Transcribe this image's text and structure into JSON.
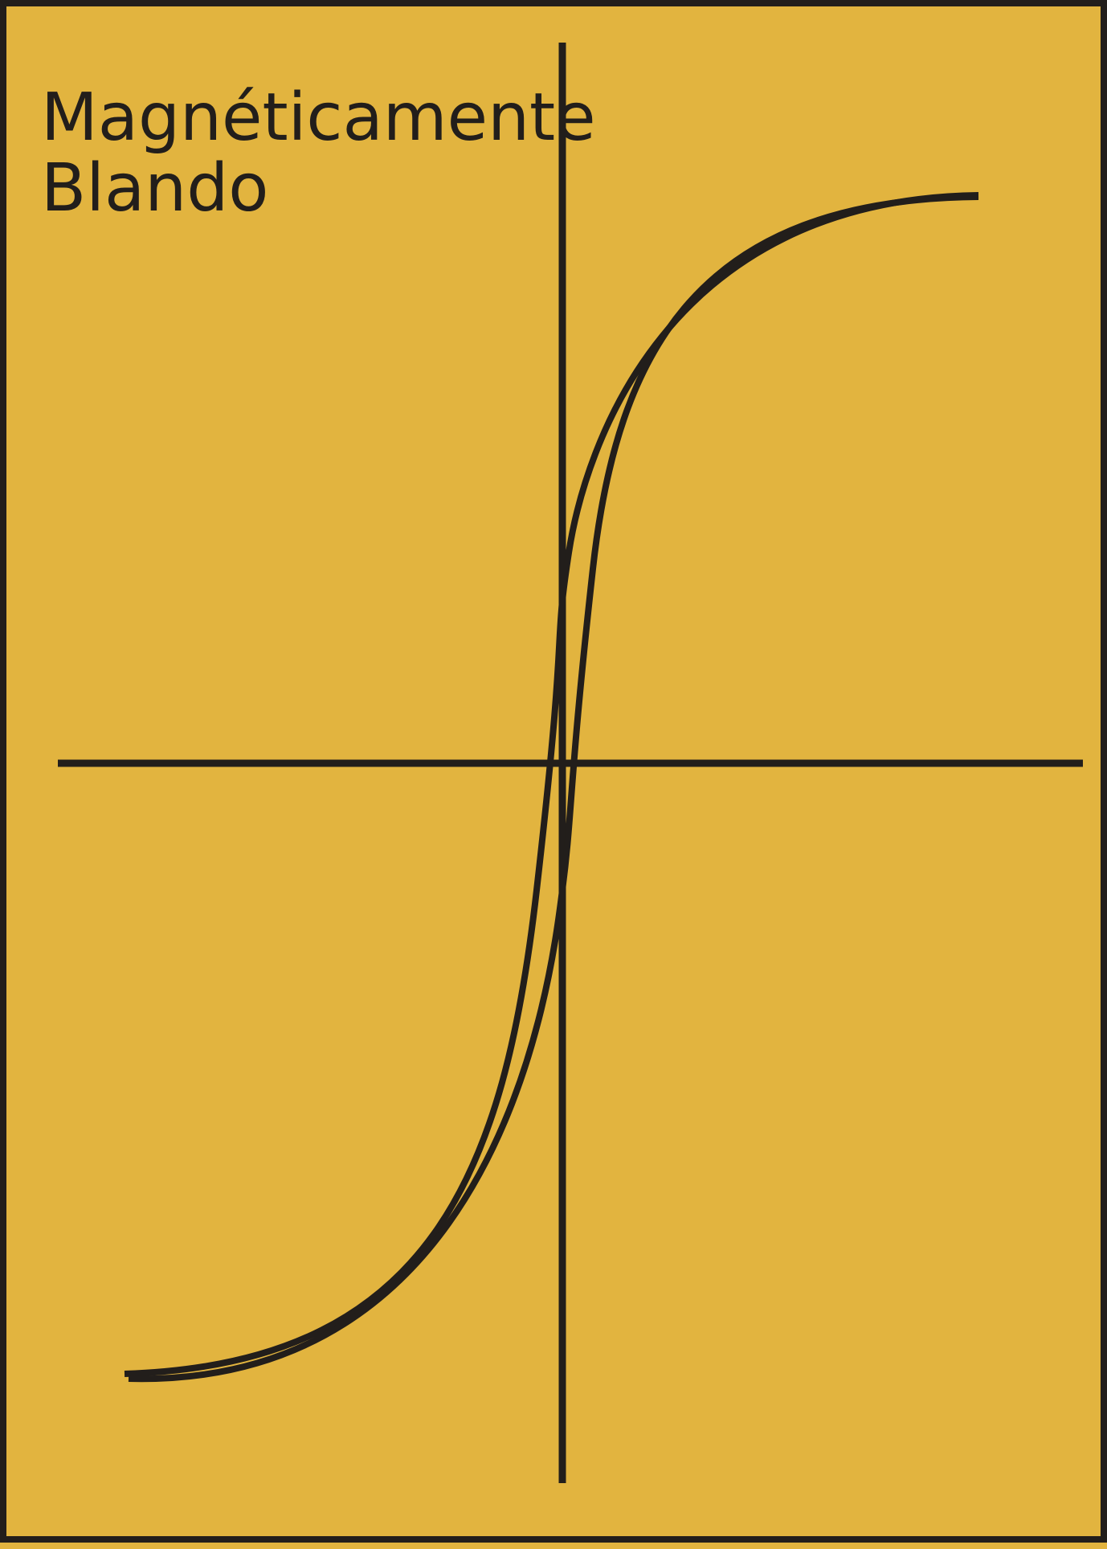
{
  "diagram": {
    "title_line1": "Magnéticamente",
    "title_line2": "Blando",
    "colors": {
      "background": "#e2b43f",
      "ink": "#221e1b"
    },
    "elements": {
      "axes": "horizontal-and-vertical-axis",
      "curve": "narrow-hysteresis-loop"
    }
  }
}
